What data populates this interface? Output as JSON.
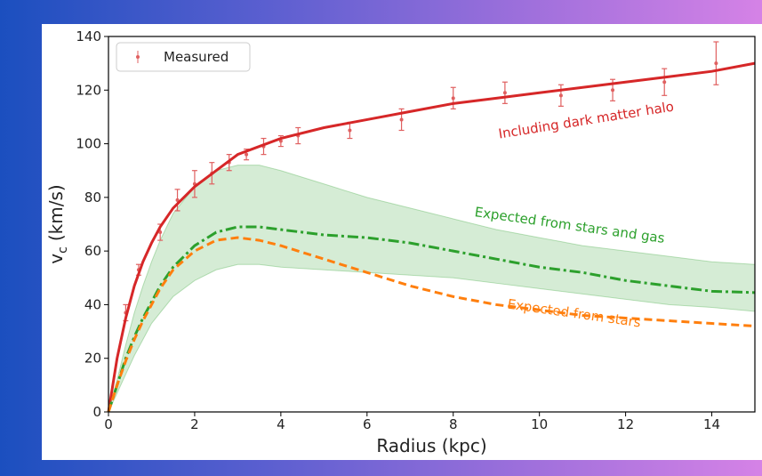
{
  "chart_data": {
    "type": "line",
    "xlabel": "Radius (kpc)",
    "ylabel_base": "v",
    "ylabel_sub": "c",
    "ylabel_unit": "(km/s)",
    "xlim": [
      0,
      15
    ],
    "ylim": [
      0,
      140
    ],
    "xticks": [
      0,
      2,
      4,
      6,
      8,
      10,
      12,
      14
    ],
    "yticks": [
      0,
      20,
      40,
      60,
      80,
      100,
      120,
      140
    ],
    "x": [
      0,
      0.2,
      0.4,
      0.6,
      0.8,
      1,
      1.2,
      1.5,
      2,
      2.5,
      3,
      3.5,
      4,
      5,
      6,
      7,
      8,
      9,
      10,
      11,
      12,
      13,
      14,
      15
    ],
    "band": {
      "color": "#2ca02c",
      "lower": [
        0,
        7,
        14,
        21,
        27,
        33,
        37,
        43,
        49,
        53,
        55,
        55,
        54,
        53,
        52,
        51,
        50,
        48,
        46,
        44,
        42,
        40,
        39,
        37.5
      ],
      "upper": [
        0,
        12,
        25,
        37,
        47,
        56,
        64,
        74,
        84,
        90,
        92,
        92,
        90,
        85,
        80,
        76,
        72,
        68,
        65,
        62,
        60,
        58,
        56,
        55
      ]
    },
    "series": [
      {
        "name": "Measured",
        "style": "errorbar",
        "color": "#e06060",
        "x": [
          0.4,
          0.7,
          1.2,
          1.6,
          2.0,
          2.4,
          2.8,
          3.2,
          3.6,
          4.0,
          4.4,
          5.6,
          6.8,
          8.0,
          9.2,
          10.5,
          11.7,
          12.9,
          14.1
        ],
        "values": [
          37,
          53,
          67,
          79,
          85,
          89,
          93,
          96,
          99,
          101,
          103,
          105,
          109,
          117,
          119,
          118,
          120,
          123,
          130
        ],
        "errors": [
          3,
          2,
          3,
          4,
          5,
          4,
          3,
          2,
          3,
          2,
          3,
          3,
          4,
          4,
          4,
          4,
          4,
          5,
          8
        ]
      },
      {
        "style": "solid",
        "color": "#d62728",
        "values": [
          0,
          20,
          35,
          47,
          56,
          63,
          69,
          76,
          84,
          90,
          96,
          99,
          102,
          106,
          109,
          112,
          115,
          117,
          119,
          121,
          123,
          125,
          127,
          130
        ]
      },
      {
        "style": "dashdot",
        "color": "#2ca02c",
        "values": [
          0,
          10,
          20,
          28,
          35,
          41,
          47,
          54,
          62,
          67,
          69,
          69,
          68,
          66,
          65,
          63,
          60,
          57,
          54,
          52,
          49,
          47,
          45,
          44.5
        ]
      },
      {
        "style": "dashed",
        "color": "#ff7f0e",
        "values": [
          0,
          10,
          19,
          27,
          34,
          40,
          46,
          53,
          60,
          64,
          65,
          64,
          62,
          57,
          52,
          47,
          43,
          40,
          38,
          36,
          35,
          34,
          33,
          32
        ]
      }
    ],
    "annotations": [
      {
        "text": "Including dark matter halo",
        "color": "#d62728"
      },
      {
        "text": "Expected from stars and gas",
        "color": "#2ca02c"
      },
      {
        "text": "Expected from stars",
        "color": "#ff7f0e"
      }
    ],
    "legend": "upper left"
  }
}
